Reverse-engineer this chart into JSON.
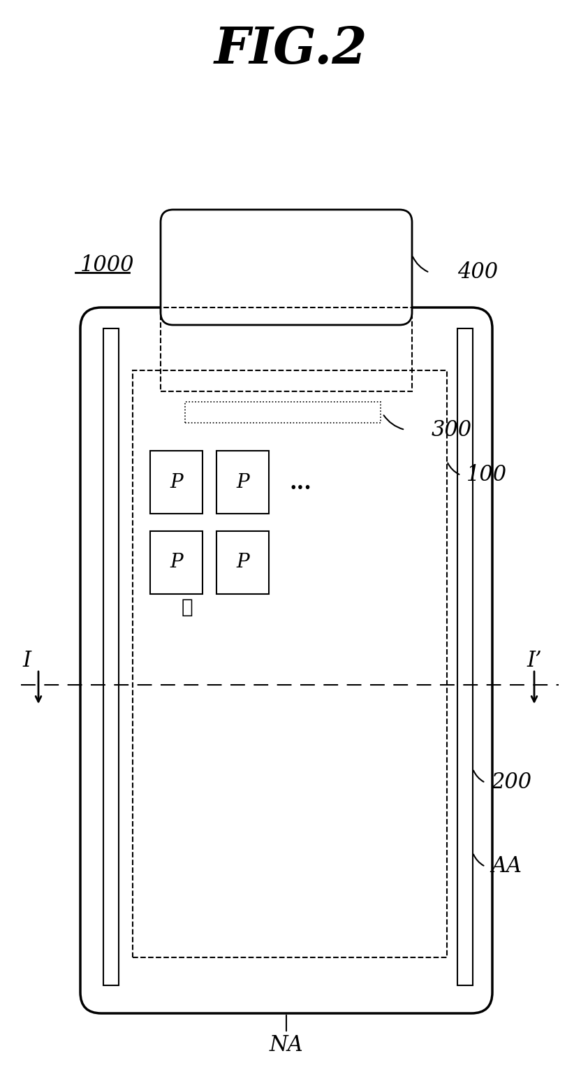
{
  "title": "FIG.2",
  "bg_color": "#ffffff",
  "fig_width": 8.32,
  "fig_height": 15.44,
  "label_1000": "1000",
  "label_400": "400",
  "label_300": "300",
  "label_100": "100",
  "label_200": "200",
  "label_AA": "AA",
  "label_NA": "NA",
  "label_I": "I",
  "label_Ip": "I’"
}
